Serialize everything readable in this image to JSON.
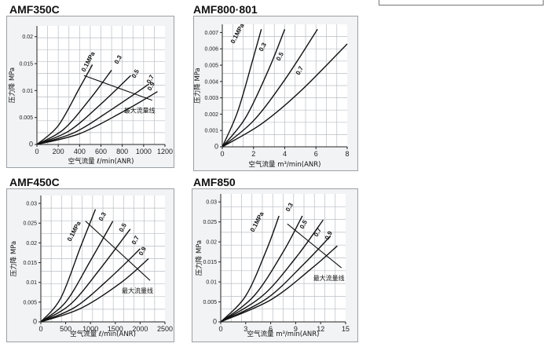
{
  "chart_data": [
    {
      "title": "AMF350C",
      "type": "line",
      "xlabel": "空气流量 ℓ/min(ANR)",
      "ylabel": "压力降 MPa",
      "xlim": [
        0,
        1200
      ],
      "ylim": [
        0,
        0.022
      ],
      "xticks": [
        "0",
        "200",
        "400",
        "600",
        "800",
        "1000",
        "1200"
      ],
      "yticks": [
        "0",
        "0.005",
        "0.01",
        "0.015",
        "0.02"
      ],
      "series": [
        {
          "name": "0.1MPa",
          "x": [
            0,
            200,
            400,
            520
          ],
          "y": [
            0,
            0.0035,
            0.0105,
            0.0148
          ]
        },
        {
          "name": "0.3",
          "x": [
            0,
            250,
            500,
            700
          ],
          "y": [
            0,
            0.0028,
            0.0085,
            0.0138
          ]
        },
        {
          "name": "0.5",
          "x": [
            0,
            300,
            600,
            880
          ],
          "y": [
            0,
            0.0025,
            0.0075,
            0.0128
          ]
        },
        {
          "name": "0.7",
          "x": [
            0,
            350,
            700,
            1050
          ],
          "y": [
            0,
            0.0022,
            0.0065,
            0.0112
          ]
        },
        {
          "name": "0.9",
          "x": [
            0,
            400,
            800,
            1130
          ],
          "y": [
            0,
            0.002,
            0.006,
            0.0098
          ]
        }
      ],
      "max_flow_line": {
        "label": "最大流量线",
        "x": [
          440,
          1080
        ],
        "y": [
          0.0128,
          0.0082
        ]
      }
    },
    {
      "title": "AMF800·801",
      "type": "line",
      "xlabel": "空气流量 m³/min(ANR)",
      "ylabel": "压力降 MPa",
      "xlim": [
        0,
        8
      ],
      "ylim": [
        0,
        0.0075
      ],
      "xticks": [
        "0",
        "2",
        "4",
        "6",
        "8"
      ],
      "yticks": [
        "0",
        "0.001",
        "0.002",
        "0.003",
        "0.004",
        "0.005",
        "0.006",
        "0.007"
      ],
      "series": [
        {
          "name": "0.1MPa",
          "x": [
            0,
            1,
            2,
            2.5
          ],
          "y": [
            0,
            0.0022,
            0.0055,
            0.0072
          ]
        },
        {
          "name": "0.3",
          "x": [
            0,
            1.5,
            3,
            4
          ],
          "y": [
            0,
            0.0018,
            0.0048,
            0.0072
          ]
        },
        {
          "name": "0.5",
          "x": [
            0,
            2,
            4,
            6.1
          ],
          "y": [
            0,
            0.0016,
            0.0041,
            0.0072
          ]
        },
        {
          "name": "0.7",
          "x": [
            0,
            2.5,
            5,
            8
          ],
          "y": [
            0,
            0.0014,
            0.0034,
            0.0063
          ]
        }
      ]
    },
    {
      "title": "AMF450C",
      "type": "line",
      "xlabel": "空气流量 ℓ/min(ANR)",
      "ylabel": "压力降 MPa",
      "xlim": [
        0,
        2500
      ],
      "ylim": [
        0,
        0.032
      ],
      "xticks": [
        "0",
        "500",
        "1000",
        "1500",
        "2000",
        "2500"
      ],
      "yticks": [
        "0",
        "0.005",
        "0.01",
        "0.015",
        "0.02",
        "0.025",
        "0.03"
      ],
      "series": [
        {
          "name": "0.1MPa",
          "x": [
            0,
            400,
            800,
            1100
          ],
          "y": [
            0,
            0.006,
            0.019,
            0.0285
          ]
        },
        {
          "name": "0.3",
          "x": [
            0,
            500,
            1000,
            1450
          ],
          "y": [
            0,
            0.005,
            0.0155,
            0.0255
          ]
        },
        {
          "name": "0.5",
          "x": [
            0,
            600,
            1200,
            1800
          ],
          "y": [
            0,
            0.0045,
            0.0135,
            0.0235
          ]
        },
        {
          "name": "0.7",
          "x": [
            0,
            700,
            1400,
            2000
          ],
          "y": [
            0,
            0.0038,
            0.0112,
            0.0185
          ]
        },
        {
          "name": "0.9",
          "x": [
            0,
            800,
            1600,
            2170
          ],
          "y": [
            0,
            0.0034,
            0.0098,
            0.016
          ]
        }
      ],
      "max_flow_line": {
        "label": "最大流量线",
        "x": [
          900,
          2200
        ],
        "y": [
          0.0255,
          0.0105
        ]
      }
    },
    {
      "title": "AMF850",
      "type": "line",
      "xlabel": "空气流量 m³/min(ANR)",
      "ylabel": "压力降 MPa",
      "xlim": [
        0,
        15
      ],
      "ylim": [
        0,
        0.032
      ],
      "xticks": [
        "0",
        "3",
        "6",
        "9",
        "12",
        "15"
      ],
      "yticks": [
        "0",
        "0.005",
        "0.01",
        "0.015",
        "0.02",
        "0.025",
        "0.03"
      ],
      "series": [
        {
          "name": "0.1MPa",
          "x": [
            0,
            3,
            5.5,
            7
          ],
          "y": [
            0,
            0.0065,
            0.018,
            0.0265
          ]
        },
        {
          "name": "0.3",
          "x": [
            0,
            4,
            7.5,
            9.8
          ],
          "y": [
            0,
            0.0065,
            0.0175,
            0.0265
          ]
        },
        {
          "name": "0.5",
          "x": [
            0,
            5,
            9,
            12.3
          ],
          "y": [
            0,
            0.0065,
            0.016,
            0.0255
          ]
        },
        {
          "name": "0.7",
          "x": [
            0,
            5.5,
            10,
            13.2
          ],
          "y": [
            0,
            0.0058,
            0.0145,
            0.0215
          ]
        },
        {
          "name": "0.9",
          "x": [
            0,
            6,
            11,
            14
          ],
          "y": [
            0,
            0.0055,
            0.0135,
            0.019
          ]
        }
      ],
      "max_flow_line": {
        "label": "最大流量线",
        "x": [
          8,
          14.5
        ],
        "y": [
          0.0245,
          0.0135
        ]
      }
    }
  ]
}
